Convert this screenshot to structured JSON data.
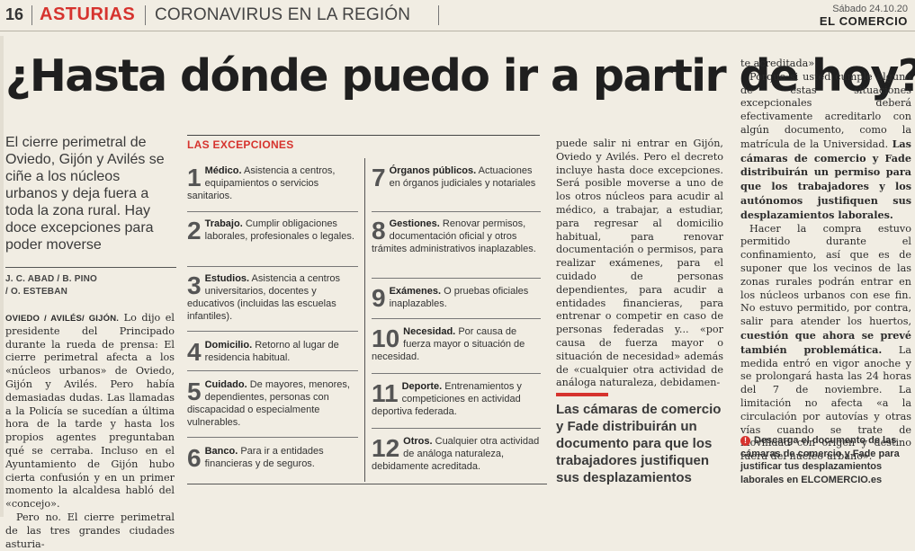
{
  "header": {
    "page_number": "16",
    "section": "ASTURIAS",
    "topic": "CORONAVIRUS EN LA REGIÓN",
    "date": "Sábado 24.10.20",
    "newspaper": "EL COMERCIO"
  },
  "article": {
    "headline": "¿Hasta dónde puedo ir a partir de hoy?",
    "lead": "El cierre perimetral de Oviedo, Gijón y Avilés se ciñe a los núcleos urbanos y deja fuera a toda la zona rural. Hay doce excepciones para poder moverse",
    "byline_1": "J. C. ABAD / B. PINO",
    "byline_2": "/ O. ESTEBAN",
    "dateline": "OVIEDO / AVILÉS/ GIJÓN.",
    "col1_p1": "Lo dijo el presidente del Principado durante la rueda de prensa: El cierre perimetral afecta a los «núcleos urbanos» de Oviedo, Gijón y Avilés. Pero había demasiadas dudas. Las llamadas a la Policía se sucedían a última hora de la tarde y hasta los propios agentes preguntaban qué se cerraba. Incluso en el Ayuntamiento de Gijón hubo cierta confusión y en un primer momento la alcaldesa habló del «concejo».",
    "col1_p2": "Pero no. El cierre perimetral de las tres grandes ciudades asturia-",
    "col3_text": "puede salir ni entrar en Gijón, Oviedo y Avilés. Pero el decreto incluye hasta doce excepciones. Será posible moverse a uno de los otros núcleos para acudir al médico, a trabajar, a estudiar, para regresar al domicilio habitual, para renovar documentación o permisos, para realizar exámenes, para el cuidado de personas dependientes, para acudir a entidades financieras, para entrenar o competir en caso de personas federadas y... «por causa de fuerza mayor o situación de necesidad» además de «cualquier otra actividad de análoga naturaleza, debidamen-",
    "pull_quote": "Las cámaras de comercio y Fade distribuirán un documento para que los trabajadores justifiquen sus desplazamientos",
    "col4_p1": "te acreditada».",
    "col4_p2_a": "Porque si usted cumple alguna de estas situaciones excepcionales deberá efectivamente acreditarlo con algún documento, como la matrícula de la Universidad.",
    "col4_p2_b": "Las cámaras de comercio y Fade distribuirán un permiso para que los trabajadores y los autónomos justifiquen sus desplazamientos laborales.",
    "col4_p3_a": "Hacer la compra estuvo permitido durante el confinamiento, así que es de suponer que los vecinos de las zonas rurales podrán entrar en los núcleos urbanos con ese fin. No estuvo permitido, por contra, salir para atender los huertos,",
    "col4_p3_b": "cuestión que ahora se prevé también problemática.",
    "col4_p3_c": "La medida entró en vigor anoche y se prolongará hasta las 24 horas del 7 de noviembre. La limitación no afecta «a la circulación por autovías y otras vías cuando se trate de movilidad con origen y destino fuera del núcleo urbano».",
    "link_text": "Descarga el documento de las cámaras de comercio y Fade para justificar tus desplazamientos laborales en ELCOMERCIO.es"
  },
  "exceptions": {
    "label": "LAS EXCEPCIONES",
    "items": [
      {
        "num": "1",
        "title": "Médico.",
        "text": "Asistencia a centros, equipamientos o servicios sanitarios."
      },
      {
        "num": "2",
        "title": "Trabajo.",
        "text": "Cumplir obligaciones laborales, profesionales o legales."
      },
      {
        "num": "3",
        "title": "Estudios.",
        "text": "Asistencia a centros universitarios, docentes y educativos (incluidas las escuelas infantiles)."
      },
      {
        "num": "4",
        "title": "Domicilio.",
        "text": "Retorno al lugar de residencia habitual."
      },
      {
        "num": "5",
        "title": "Cuidado.",
        "text": "De mayores, menores, dependientes, personas con discapacidad o especialmente vulnerables."
      },
      {
        "num": "6",
        "title": "Banco.",
        "text": "Para ir a entidades financieras y de seguros."
      },
      {
        "num": "7",
        "title": "Órganos públicos.",
        "text": "Actuaciones en órganos judiciales y notariales"
      },
      {
        "num": "8",
        "title": "Gestiones.",
        "text": "Renovar permisos, documentación oficial y otros trámites administrativos inaplazables."
      },
      {
        "num": "9",
        "title": "Exámenes.",
        "text": "O pruebas oficiales inaplazables."
      },
      {
        "num": "10",
        "title": "Necesidad.",
        "text": "Por causa de fuerza mayor o situación de necesidad."
      },
      {
        "num": "11",
        "title": "Deporte.",
        "text": "Entrenamientos y competiciones en actividad deportiva federada."
      },
      {
        "num": "12",
        "title": "Otros.",
        "text": "Cualquier otra actividad de análoga naturaleza, debidamente acreditada."
      }
    ]
  },
  "colors": {
    "accent_red": "#d6332e",
    "paper": "#f1ede3",
    "text": "#2b2b2b"
  }
}
